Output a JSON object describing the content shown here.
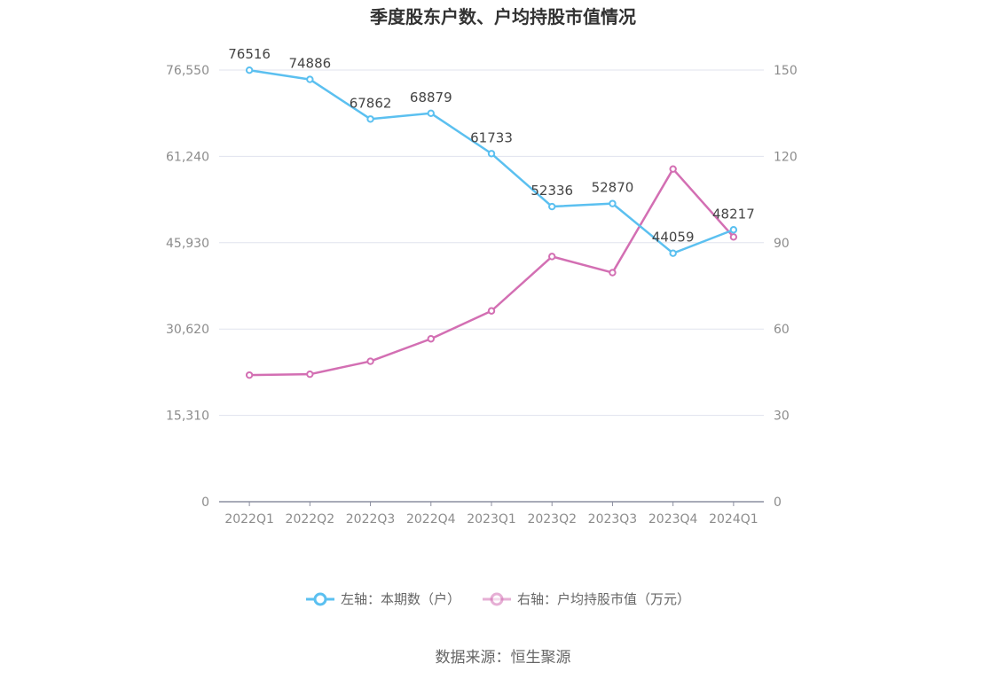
{
  "chart_data": {
    "type": "line",
    "title": "季度股东户数、户均持股市值情况",
    "categories": [
      "2022Q1",
      "2022Q2",
      "2022Q3",
      "2022Q4",
      "2023Q1",
      "2023Q2",
      "2023Q3",
      "2023Q4",
      "2024Q1"
    ],
    "left_axis": {
      "ticks": [
        "0",
        "15,310",
        "30,620",
        "45,930",
        "61,240",
        "76,550"
      ],
      "ylim": [
        0,
        76550
      ]
    },
    "right_axis": {
      "ticks": [
        "0",
        "30",
        "60",
        "90",
        "120",
        "150"
      ],
      "ylim": [
        0,
        150
      ]
    },
    "series": [
      {
        "name": "左轴：本期数（户）",
        "axis": "left",
        "color": "#5bc0f0",
        "values": [
          76516,
          74886,
          67862,
          68879,
          61733,
          52336,
          52870,
          44059,
          48217
        ],
        "labels": [
          "76516",
          "74886",
          "67862",
          "68879",
          "61733",
          "52336",
          "52870",
          "44059",
          "48217"
        ]
      },
      {
        "name": "右轴：户均持股市值（万元）",
        "axis": "right",
        "color": "#d36fb3",
        "values": [
          44.0,
          44.3,
          48.8,
          56.6,
          66.3,
          85.2,
          79.6,
          115.6,
          92.0
        ]
      }
    ],
    "legend_position": "bottom",
    "grid": true,
    "source": "数据来源：恒生聚源"
  }
}
